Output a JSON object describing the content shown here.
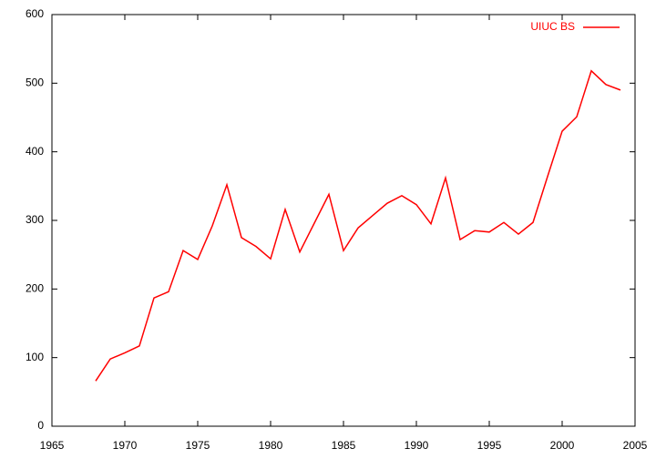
{
  "chart_data": {
    "type": "line",
    "x": [
      1968,
      1969,
      1970,
      1971,
      1972,
      1973,
      1974,
      1975,
      1976,
      1977,
      1978,
      1979,
      1980,
      1981,
      1982,
      1983,
      1984,
      1985,
      1986,
      1987,
      1988,
      1989,
      1990,
      1991,
      1992,
      1993,
      1994,
      1995,
      1996,
      1997,
      1998,
      1999,
      2000,
      2001,
      2002,
      2003,
      2004
    ],
    "series": [
      {
        "name": "UIUC BS",
        "color": "#ff0000",
        "values": [
          66,
          98,
          107,
          117,
          187,
          196,
          256,
          243,
          292,
          352,
          275,
          262,
          244,
          316,
          254,
          296,
          338,
          256,
          289,
          307,
          325,
          336,
          323,
          295,
          362,
          272,
          285,
          283,
          297,
          280,
          297,
          364,
          430,
          451,
          518,
          498,
          490
        ]
      }
    ],
    "xlim": [
      1965,
      2005
    ],
    "xticks": [
      1965,
      1970,
      1975,
      1980,
      1985,
      1990,
      1995,
      2000,
      2005
    ],
    "ylim": [
      0,
      600
    ],
    "yticks": [
      0,
      100,
      200,
      300,
      400,
      500,
      600
    ],
    "legend": "top-right"
  }
}
